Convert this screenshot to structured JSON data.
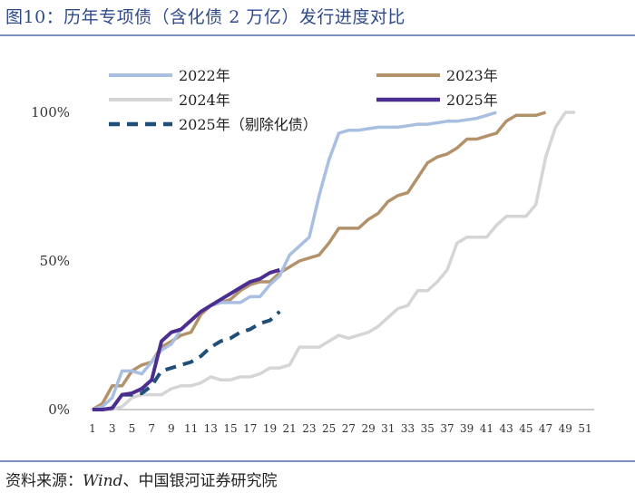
{
  "header": {
    "title": "图10：历年专项债（含化债 2 万亿）发行进度对比"
  },
  "footer": {
    "source_label": "资料来源：",
    "source_en": "Wind",
    "source_rest": "、中国银河证券研究院"
  },
  "chart_data": {
    "type": "line",
    "title": "图10：历年专项债（含化债 2 万亿）发行进度对比",
    "xlabel": "",
    "ylabel": "",
    "xlim": [
      1,
      51
    ],
    "ylim": [
      0,
      100
    ],
    "x_ticks": [
      1,
      3,
      5,
      7,
      9,
      11,
      13,
      15,
      17,
      19,
      21,
      23,
      25,
      27,
      29,
      31,
      33,
      35,
      37,
      39,
      41,
      43,
      45,
      47,
      49,
      51
    ],
    "y_ticks": [
      {
        "value": 0,
        "label": "0%"
      },
      {
        "value": 50,
        "label": "50%"
      },
      {
        "value": 100,
        "label": "100%"
      }
    ],
    "legend_position": "top",
    "series": [
      {
        "name": "2022年",
        "color": "#a9bfe1",
        "dash": "solid",
        "width": 3.5,
        "x": [
          1,
          2,
          3,
          4,
          5,
          6,
          7,
          8,
          9,
          10,
          11,
          12,
          13,
          14,
          15,
          16,
          17,
          18,
          19,
          20,
          21,
          22,
          23,
          24,
          25,
          26,
          27,
          28,
          29,
          30,
          31,
          32,
          33,
          34,
          35,
          36,
          37,
          38,
          39,
          40,
          41,
          42
        ],
        "y": [
          0,
          1,
          4,
          13,
          13,
          12,
          16,
          20,
          22,
          27,
          30,
          33,
          35,
          36,
          36,
          36,
          38,
          38,
          42,
          45,
          52,
          55,
          58,
          72,
          84,
          93,
          94,
          94,
          94.5,
          95,
          95,
          95,
          95.5,
          96,
          96,
          96.5,
          97,
          97,
          97.5,
          98,
          99,
          100
        ]
      },
      {
        "name": "2023年",
        "color": "#b3926a",
        "dash": "solid",
        "width": 3.5,
        "x": [
          1,
          2,
          3,
          4,
          5,
          6,
          7,
          8,
          9,
          10,
          11,
          12,
          13,
          14,
          15,
          16,
          17,
          18,
          19,
          20,
          21,
          22,
          23,
          24,
          25,
          26,
          27,
          28,
          29,
          30,
          31,
          32,
          33,
          34,
          35,
          36,
          37,
          38,
          39,
          40,
          41,
          42,
          43,
          44,
          45,
          46,
          47
        ],
        "y": [
          0,
          2,
          8,
          8,
          13,
          15,
          16,
          21,
          23,
          25,
          26,
          32,
          35,
          36,
          37,
          40,
          42,
          43,
          43,
          46,
          48,
          50,
          51,
          52,
          56,
          61,
          61,
          61,
          64,
          66,
          70,
          72,
          73,
          78,
          83,
          85,
          86,
          88,
          91,
          91,
          92,
          93,
          97,
          99,
          99,
          99,
          100
        ]
      },
      {
        "name": "2024年",
        "color": "#d5d5d5",
        "dash": "solid",
        "width": 3.5,
        "x": [
          1,
          2,
          3,
          4,
          5,
          6,
          7,
          8,
          9,
          10,
          11,
          12,
          13,
          14,
          15,
          16,
          17,
          18,
          19,
          20,
          21,
          22,
          23,
          24,
          25,
          26,
          27,
          28,
          29,
          30,
          31,
          32,
          33,
          34,
          35,
          36,
          37,
          38,
          39,
          40,
          41,
          42,
          43,
          44,
          45,
          46,
          47,
          48,
          49,
          50
        ],
        "y": [
          0,
          0,
          0,
          1,
          4,
          5,
          5,
          5,
          7,
          8,
          8,
          9,
          11,
          10,
          10,
          11,
          11,
          12,
          14,
          14,
          15,
          21,
          21,
          21,
          23,
          25,
          24,
          25,
          26,
          28,
          31,
          34,
          35,
          40,
          40,
          43,
          47,
          56,
          58,
          58,
          58,
          62,
          65,
          65,
          65,
          69,
          85,
          95,
          100,
          100
        ]
      },
      {
        "name": "2025年",
        "color": "#4b2e8f",
        "dash": "solid",
        "width": 4,
        "x": [
          1,
          2,
          3,
          4,
          5,
          6,
          7,
          8,
          9,
          10,
          11,
          12,
          13,
          14,
          15,
          16,
          17,
          18,
          19,
          20
        ],
        "y": [
          0,
          0,
          0.5,
          5,
          5.5,
          7,
          10,
          23,
          26,
          27,
          30,
          33,
          35,
          37,
          39,
          41,
          43,
          44,
          46,
          47
        ]
      },
      {
        "name": "2025年（剔除化债）",
        "color": "#1f4e79",
        "dash": "dashed",
        "width": 4,
        "x": [
          1,
          2,
          3,
          4,
          5,
          6,
          7,
          8,
          9,
          10,
          11,
          12,
          13,
          14,
          15,
          16,
          17,
          18,
          19,
          20
        ],
        "y": [
          0,
          0,
          0.5,
          5,
          5,
          5.5,
          8,
          13,
          14,
          15,
          16,
          18,
          21,
          23,
          24,
          26,
          27,
          29,
          30,
          33
        ]
      }
    ]
  }
}
